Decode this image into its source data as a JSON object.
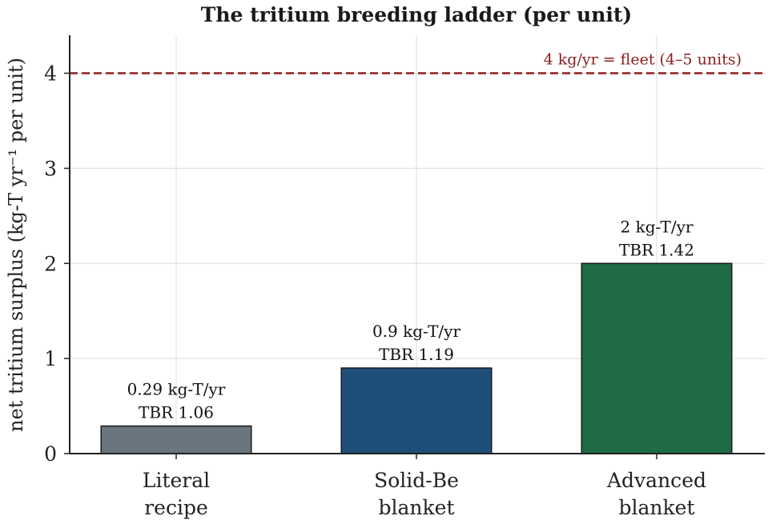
{
  "chart_data": {
    "type": "bar",
    "title": "The tritium breeding ladder (per unit)",
    "xlabel": "",
    "ylabel": "net tritium surplus  (kg-T yr⁻¹ per unit)",
    "ylim": [
      0,
      4.4
    ],
    "yticks": [
      "0",
      "1",
      "2",
      "3",
      "4"
    ],
    "grid": true,
    "categories": [
      {
        "line1": "Literal",
        "line2": "recipe"
      },
      {
        "line1": "Solid-Be",
        "line2": "blanket"
      },
      {
        "line1": "Advanced",
        "line2": "blanket"
      }
    ],
    "values": [
      0.29,
      0.9,
      2.0
    ],
    "value_labels": [
      "0.29 kg-T/yr",
      "0.9 kg-T/yr",
      "2 kg-T/yr"
    ],
    "tbr_labels": [
      "TBR 1.06",
      "TBR 1.19",
      "TBR 1.42"
    ],
    "colors": [
      "#6b7580",
      "#1f4e79",
      "#1e6b45"
    ],
    "reference_line": {
      "value": 4,
      "label": "4 kg/yr = fleet (4–5 units)",
      "color": "#8b1e1e"
    }
  }
}
